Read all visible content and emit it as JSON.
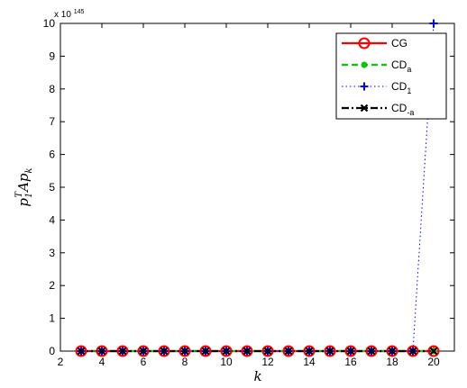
{
  "chart_data": {
    "type": "line",
    "xlabel": "k",
    "ylabel_main": "p",
    "ylabel_sub": "1",
    "ylabel_sup": "T",
    "ylabel_rest": "Ap",
    "ylabel_rest_sub": "k",
    "y_multiplier_base": "x 10",
    "y_multiplier_exp": "145",
    "xlim": [
      2,
      21
    ],
    "ylim": [
      0,
      10
    ],
    "x_ticks": [
      2,
      4,
      6,
      8,
      10,
      12,
      14,
      16,
      18,
      20
    ],
    "y_ticks": [
      0,
      1,
      2,
      3,
      4,
      5,
      6,
      7,
      8,
      9,
      10
    ],
    "grid": false,
    "legend_position": "top-right",
    "x": [
      3,
      4,
      5,
      6,
      7,
      8,
      9,
      10,
      11,
      12,
      13,
      14,
      15,
      16,
      17,
      18,
      19,
      20
    ],
    "series": [
      {
        "name": "CG",
        "name_sub": "",
        "color": "#ff0000",
        "dash": "solid",
        "marker": "circle",
        "values": [
          0,
          0,
          0,
          0,
          0,
          0,
          0,
          0,
          0,
          0,
          0,
          0,
          0,
          0,
          0,
          0,
          0,
          0
        ]
      },
      {
        "name": "CD",
        "name_sub": "a",
        "color": "#00cc00",
        "dash": "dashed",
        "marker": "dot",
        "values": [
          0,
          0,
          0,
          0,
          0,
          0,
          0,
          0,
          0,
          0,
          0,
          0,
          0,
          0,
          0,
          0,
          0,
          0
        ]
      },
      {
        "name": "CD",
        "name_sub": "1",
        "color": "#0000ff",
        "dash": "dotted",
        "marker": "plus",
        "values": [
          0,
          0,
          0,
          0,
          0,
          0,
          0,
          0,
          0,
          0,
          0,
          0,
          0,
          0,
          0,
          0,
          0,
          10
        ]
      },
      {
        "name": "CD",
        "name_sub": "-a",
        "color": "#000000",
        "dash": "dashdot",
        "marker": "x",
        "values": [
          0,
          0,
          0,
          0,
          0,
          0,
          0,
          0,
          0,
          0,
          0,
          0,
          0,
          0,
          0,
          0,
          0,
          0
        ]
      }
    ]
  }
}
